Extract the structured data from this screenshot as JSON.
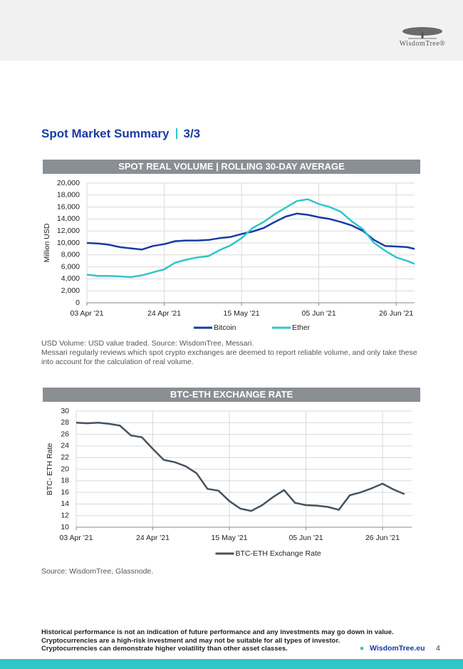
{
  "header": {
    "logo": "WisdomTree®"
  },
  "title": {
    "text": "Spot Market Summary",
    "page": "3/3"
  },
  "chart_data": [
    {
      "type": "line",
      "title": "SPOT REAL VOLUME | ROLLING 30-DAY AVERAGE",
      "y_label": "Million USD",
      "x": [
        "2021-04-03",
        "2021-04-06",
        "2021-04-09",
        "2021-04-12",
        "2021-04-15",
        "2021-04-18",
        "2021-04-21",
        "2021-04-24",
        "2021-04-27",
        "2021-04-30",
        "2021-05-03",
        "2021-05-06",
        "2021-05-09",
        "2021-05-12",
        "2021-05-15",
        "2021-05-18",
        "2021-05-21",
        "2021-05-24",
        "2021-05-27",
        "2021-05-30",
        "2021-06-02",
        "2021-06-05",
        "2021-06-08",
        "2021-06-11",
        "2021-06-14",
        "2021-06-17",
        "2021-06-20",
        "2021-06-23",
        "2021-06-26",
        "2021-06-29",
        "2021-07-01"
      ],
      "series": [
        {
          "name": "Bitcoin",
          "color": "#1a3ba3",
          "values": [
            10000,
            9900,
            9700,
            9300,
            9100,
            8900,
            9500,
            9800,
            10300,
            10400,
            10400,
            10500,
            10800,
            11000,
            11500,
            11900,
            12500,
            13500,
            14400,
            14900,
            14700,
            14300,
            14000,
            13500,
            12900,
            12000,
            10500,
            9500,
            9400,
            9300,
            9000
          ]
        },
        {
          "name": "Ether",
          "color": "#2fc6c8",
          "values": [
            4700,
            4500,
            4500,
            4400,
            4300,
            4600,
            5100,
            5600,
            6700,
            7200,
            7600,
            7800,
            8800,
            9600,
            10800,
            12500,
            13500,
            14800,
            15900,
            17000,
            17300,
            16500,
            16000,
            15200,
            13600,
            12300,
            10000,
            8700,
            7600,
            7000,
            6500
          ]
        }
      ],
      "xlim": [
        "2021-04-03",
        "2021-07-01"
      ],
      "xticks": [
        {
          "value": "2021-04-03",
          "label": "03 Apr '21"
        },
        {
          "value": "2021-04-24",
          "label": "24 Apr '21"
        },
        {
          "value": "2021-05-15",
          "label": "15 May '21"
        },
        {
          "value": "2021-06-05",
          "label": "05 Jun '21"
        },
        {
          "value": "2021-06-26",
          "label": "26 Jun '21"
        }
      ],
      "ylim": [
        0,
        20000
      ],
      "yticks": [
        0,
        {
          "value": 2000,
          "label": "2,000"
        },
        {
          "value": 4000,
          "label": "4,000"
        },
        {
          "value": 6000,
          "label": "6,000"
        },
        {
          "value": 8000,
          "label": "8,000"
        },
        {
          "value": 10000,
          "label": "10,000"
        },
        {
          "value": 12000,
          "label": "12,000"
        },
        {
          "value": 14000,
          "label": "14,000"
        },
        {
          "value": 16000,
          "label": "16,000"
        },
        {
          "value": 18000,
          "label": "18,000"
        },
        {
          "value": 20000,
          "label": "20,000"
        }
      ],
      "grid": true,
      "legend": "bottom",
      "notes": [
        "USD Volume: USD value traded. Source: WisdomTree, Messari.",
        "Messari regularly reviews which spot crypto exchanges are deemed to report reliable volume, and only take these into account for the calculation of real volume."
      ]
    },
    {
      "type": "line",
      "title": "BTC-ETH EXCHANGE RATE",
      "y_label": "BTC- ETH Rate",
      "x": [
        "2021-04-03",
        "2021-04-06",
        "2021-04-09",
        "2021-04-12",
        "2021-04-15",
        "2021-04-18",
        "2021-04-21",
        "2021-04-24",
        "2021-04-27",
        "2021-04-30",
        "2021-05-03",
        "2021-05-06",
        "2021-05-09",
        "2021-05-12",
        "2021-05-15",
        "2021-05-18",
        "2021-05-21",
        "2021-05-24",
        "2021-05-27",
        "2021-05-30",
        "2021-06-02",
        "2021-06-05",
        "2021-06-08",
        "2021-06-11",
        "2021-06-14",
        "2021-06-17",
        "2021-06-20",
        "2021-06-23",
        "2021-06-26",
        "2021-06-29",
        "2021-07-02"
      ],
      "series": [
        {
          "name": "BTC-ETH Exchange Rate",
          "color": "#46525e",
          "values": [
            28,
            27.9,
            28,
            27.8,
            27.5,
            25.8,
            25.5,
            23.5,
            21.6,
            21.2,
            20.5,
            19.3,
            16.6,
            16.3,
            14.5,
            13.2,
            12.8,
            13.8,
            15.2,
            16.4,
            14.2,
            13.8,
            13.7,
            13.5,
            13.0,
            15.5,
            16.0,
            16.7,
            17.5,
            16.5,
            15.7
          ]
        }
      ],
      "xlim": [
        "2021-04-03",
        "2021-07-04"
      ],
      "xticks": [
        {
          "value": "2021-04-03",
          "label": "03 Apr '21"
        },
        {
          "value": "2021-04-24",
          "label": "24 Apr '21"
        },
        {
          "value": "2021-05-15",
          "label": "15 May '21"
        },
        {
          "value": "2021-06-05",
          "label": "05 Jun '21"
        },
        {
          "value": "2021-06-26",
          "label": "26 Jun '21"
        }
      ],
      "ylim": [
        10,
        30
      ],
      "yticks": [
        10,
        12,
        14,
        16,
        18,
        20,
        22,
        24,
        26,
        28,
        30
      ],
      "grid": true,
      "legend": "bottom",
      "notes": [
        "Source: WisdomTree, Glassnode."
      ]
    }
  ],
  "footer": {
    "disclaimer": [
      "Historical performance is not an indication of future performance and any investments may go down in value.",
      "Cryptocurrencies are a high-risk investment and may not be suitable for all types of investor.",
      "Cryptocurrencies can demonstrate higher volatility than other asset classes."
    ],
    "site": "WisdomTree.eu",
    "page_number": "4"
  }
}
